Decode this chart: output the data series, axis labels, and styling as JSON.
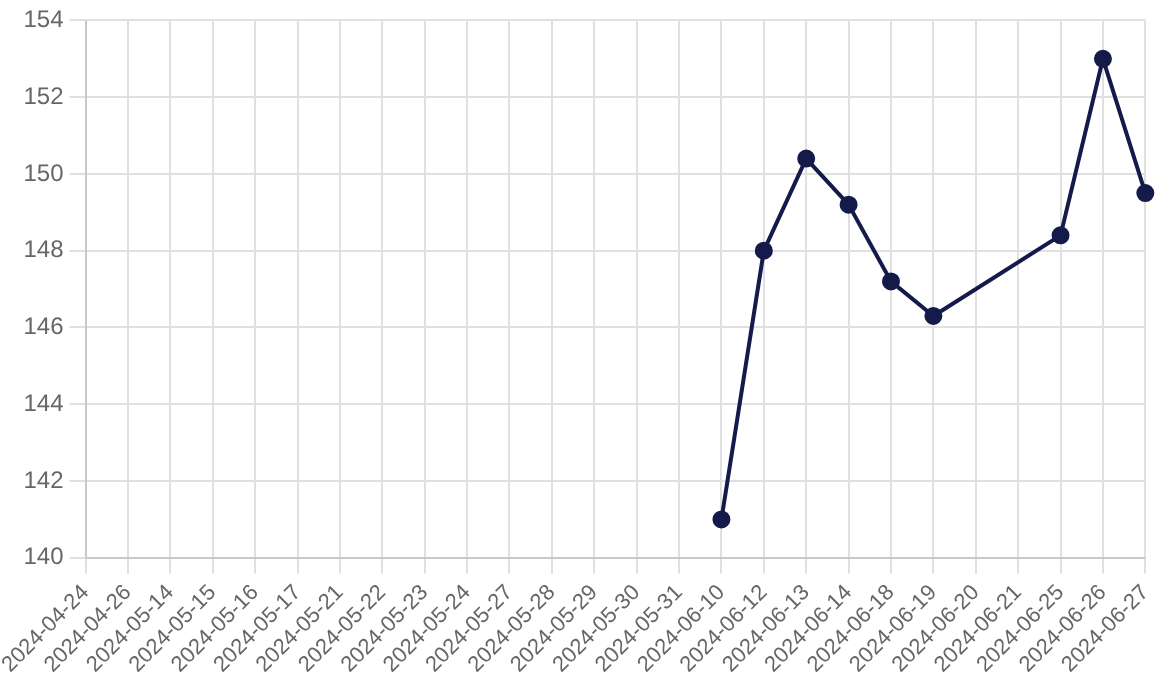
{
  "chart_data": {
    "type": "line",
    "categories": [
      "2024-04-24",
      "2024-04-26",
      "2024-05-14",
      "2024-05-15",
      "2024-05-16",
      "2024-05-17",
      "2024-05-21",
      "2024-05-22",
      "2024-05-23",
      "2024-05-24",
      "2024-05-27",
      "2024-05-28",
      "2024-05-29",
      "2024-05-30",
      "2024-05-31",
      "2024-06-10",
      "2024-06-12",
      "2024-06-13",
      "2024-06-14",
      "2024-06-18",
      "2024-06-19",
      "2024-06-20",
      "2024-06-21",
      "2024-06-25",
      "2024-06-26",
      "2024-06-27"
    ],
    "series": [
      {
        "color": "#141a4a",
        "values": [
          null,
          null,
          null,
          null,
          null,
          null,
          null,
          null,
          null,
          null,
          null,
          null,
          null,
          null,
          null,
          141,
          148,
          150.4,
          149.2,
          147.2,
          146.3,
          null,
          null,
          148.4,
          153,
          149.5
        ]
      }
    ],
    "ylim": [
      140,
      154
    ],
    "yticks": [
      140,
      142,
      144,
      146,
      148,
      150,
      152,
      154
    ],
    "grid": true,
    "marker": "circle",
    "line_style": "solid"
  }
}
